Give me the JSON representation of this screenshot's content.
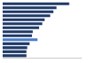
{
  "chart_data": {
    "type": "bar",
    "orientation": "horizontal",
    "categories": [
      null,
      null,
      null,
      null,
      null,
      null,
      null,
      null,
      null,
      null,
      null,
      null,
      null,
      null
    ],
    "values": [
      84,
      68,
      64,
      60,
      53,
      50,
      46,
      38,
      37,
      44,
      34,
      31,
      30,
      30
    ],
    "colors": [
      "#1f3a68",
      "#1f3a68",
      "#1f3a68",
      "#1f3a68",
      "#1f3a68",
      "#1f3a68",
      "#1f3a68",
      "#1f3a68",
      "#1f3a68",
      "#4a7cc9",
      "#1f3a68",
      "#1f3a68",
      "#1f3a68",
      "#1f3a68"
    ],
    "xlim": [
      0,
      100
    ],
    "grid": false,
    "tick_labels": false
  }
}
